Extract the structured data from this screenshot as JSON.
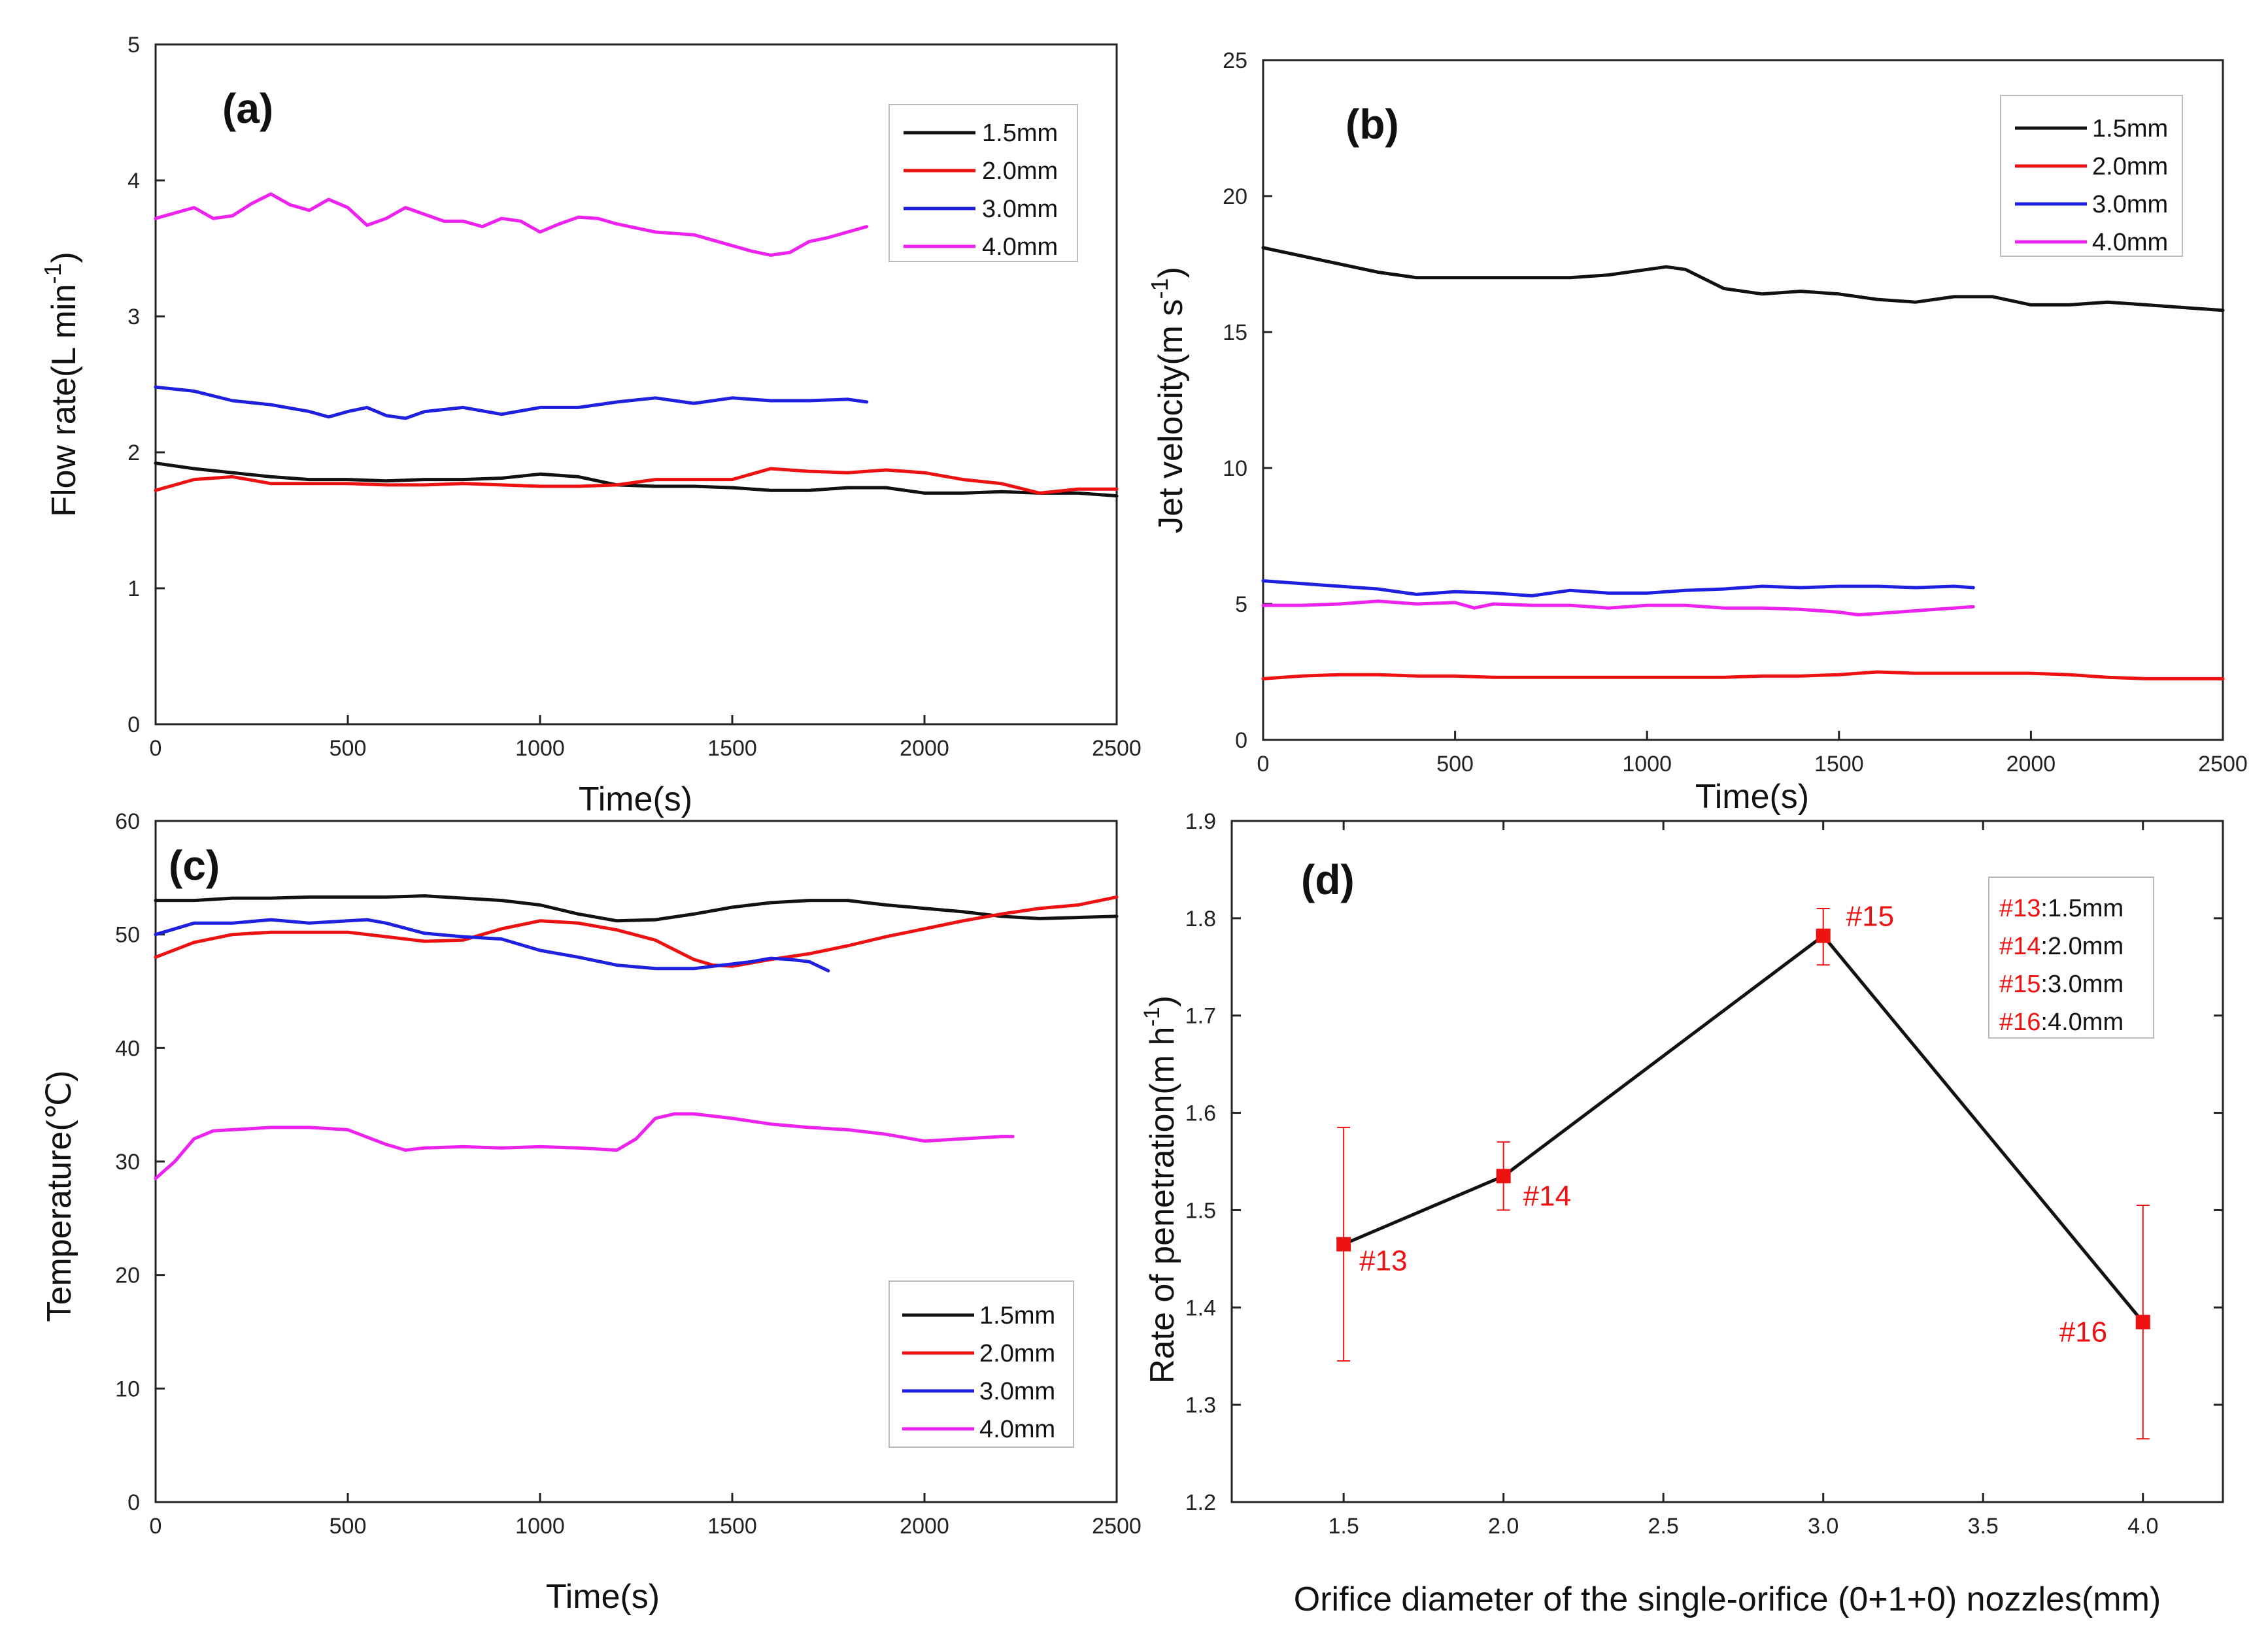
{
  "colors": {
    "s15": "#111111",
    "s20": "#ee1111",
    "s30": "#1f1fe0",
    "s40": "#ee22ee",
    "axis": "#222222"
  },
  "chart_data": [
    {
      "id": "a",
      "type": "line",
      "panel_label": "(a)",
      "xlabel": "Time(s)",
      "ylabel": "Flow rate(L min",
      "ylabel_sup": "-1",
      "ylabel_close": ")",
      "xlim": [
        0,
        2500
      ],
      "ylim": [
        0,
        5
      ],
      "xticks": [
        0,
        500,
        1000,
        1500,
        2000,
        2500
      ],
      "yticks": [
        0,
        1,
        2,
        3,
        4,
        5
      ],
      "legend_position": "top-right",
      "series": [
        {
          "name": "1.5mm",
          "color": "#111111",
          "x": [
            0,
            100,
            200,
            300,
            400,
            500,
            600,
            700,
            800,
            900,
            1000,
            1100,
            1200,
            1300,
            1400,
            1500,
            1600,
            1700,
            1800,
            1900,
            2000,
            2100,
            2200,
            2300,
            2400,
            2500
          ],
          "y": [
            1.92,
            1.88,
            1.85,
            1.82,
            1.8,
            1.8,
            1.79,
            1.8,
            1.8,
            1.81,
            1.84,
            1.82,
            1.76,
            1.75,
            1.75,
            1.74,
            1.72,
            1.72,
            1.74,
            1.74,
            1.7,
            1.7,
            1.71,
            1.7,
            1.7,
            1.68
          ]
        },
        {
          "name": "2.0mm",
          "color": "#ee1111",
          "x": [
            0,
            100,
            200,
            300,
            400,
            500,
            600,
            700,
            800,
            900,
            1000,
            1100,
            1200,
            1300,
            1400,
            1500,
            1600,
            1700,
            1800,
            1900,
            2000,
            2100,
            2200,
            2300,
            2400,
            2500
          ],
          "y": [
            1.72,
            1.8,
            1.82,
            1.77,
            1.77,
            1.77,
            1.76,
            1.76,
            1.77,
            1.76,
            1.75,
            1.75,
            1.76,
            1.8,
            1.8,
            1.8,
            1.88,
            1.86,
            1.85,
            1.87,
            1.85,
            1.8,
            1.77,
            1.7,
            1.73,
            1.73
          ]
        },
        {
          "name": "3.0mm",
          "color": "#1f1fe0",
          "x": [
            0,
            100,
            200,
            300,
            400,
            450,
            500,
            550,
            600,
            650,
            700,
            800,
            900,
            1000,
            1100,
            1200,
            1300,
            1400,
            1500,
            1600,
            1700,
            1800,
            1850
          ],
          "y": [
            2.48,
            2.45,
            2.38,
            2.35,
            2.3,
            2.26,
            2.3,
            2.33,
            2.27,
            2.25,
            2.3,
            2.33,
            2.28,
            2.33,
            2.33,
            2.37,
            2.4,
            2.36,
            2.4,
            2.38,
            2.38,
            2.39,
            2.37
          ]
        },
        {
          "name": "4.0mm",
          "color": "#ee22ee",
          "x": [
            0,
            50,
            100,
            150,
            200,
            250,
            300,
            350,
            400,
            450,
            500,
            550,
            600,
            650,
            700,
            750,
            800,
            850,
            900,
            950,
            1000,
            1050,
            1100,
            1150,
            1200,
            1300,
            1400,
            1500,
            1550,
            1600,
            1650,
            1700,
            1750,
            1800,
            1850
          ],
          "y": [
            3.72,
            3.76,
            3.8,
            3.72,
            3.74,
            3.83,
            3.9,
            3.82,
            3.78,
            3.86,
            3.8,
            3.67,
            3.72,
            3.8,
            3.75,
            3.7,
            3.7,
            3.66,
            3.72,
            3.7,
            3.62,
            3.68,
            3.73,
            3.72,
            3.68,
            3.62,
            3.6,
            3.52,
            3.48,
            3.45,
            3.47,
            3.55,
            3.58,
            3.62,
            3.66
          ]
        }
      ]
    },
    {
      "id": "b",
      "type": "line",
      "panel_label": "(b)",
      "xlabel": "Time(s)",
      "ylabel": "Jet velocity(m s",
      "ylabel_sup": "-1",
      "ylabel_close": ")",
      "xlim": [
        0,
        2500
      ],
      "ylim": [
        0,
        25
      ],
      "xticks": [
        0,
        500,
        1000,
        1500,
        2000,
        2500
      ],
      "yticks": [
        0,
        5,
        10,
        15,
        20,
        25
      ],
      "legend_position": "top-right",
      "series": [
        {
          "name": "1.5mm",
          "color": "#111111",
          "x": [
            0,
            100,
            200,
            300,
            400,
            500,
            600,
            700,
            800,
            900,
            1000,
            1050,
            1100,
            1200,
            1300,
            1400,
            1500,
            1600,
            1700,
            1800,
            1900,
            2000,
            2100,
            2200,
            2300,
            2400,
            2500
          ],
          "y": [
            18.1,
            17.8,
            17.5,
            17.2,
            17.0,
            17.0,
            17.0,
            17.0,
            17.0,
            17.1,
            17.3,
            17.4,
            17.3,
            16.6,
            16.4,
            16.5,
            16.4,
            16.2,
            16.1,
            16.3,
            16.3,
            16.0,
            16.0,
            16.1,
            16.0,
            15.9,
            15.8
          ]
        },
        {
          "name": "2.0mm",
          "color": "#ee1111",
          "x": [
            0,
            100,
            200,
            300,
            400,
            500,
            600,
            700,
            800,
            900,
            1000,
            1100,
            1200,
            1300,
            1400,
            1500,
            1600,
            1700,
            1800,
            1900,
            2000,
            2100,
            2200,
            2300,
            2400,
            2500
          ],
          "y": [
            2.25,
            2.35,
            2.4,
            2.4,
            2.35,
            2.35,
            2.3,
            2.3,
            2.3,
            2.3,
            2.3,
            2.3,
            2.3,
            2.35,
            2.35,
            2.4,
            2.5,
            2.45,
            2.45,
            2.45,
            2.45,
            2.4,
            2.3,
            2.25,
            2.25,
            2.25
          ]
        },
        {
          "name": "3.0mm",
          "color": "#1f1fe0",
          "x": [
            0,
            100,
            200,
            300,
            400,
            500,
            600,
            700,
            800,
            900,
            1000,
            1100,
            1200,
            1300,
            1400,
            1500,
            1600,
            1700,
            1800,
            1850
          ],
          "y": [
            5.85,
            5.75,
            5.65,
            5.55,
            5.35,
            5.45,
            5.4,
            5.3,
            5.5,
            5.4,
            5.4,
            5.5,
            5.55,
            5.65,
            5.6,
            5.65,
            5.65,
            5.6,
            5.65,
            5.6
          ]
        },
        {
          "name": "4.0mm",
          "color": "#ee22ee",
          "x": [
            0,
            100,
            200,
            300,
            400,
            500,
            550,
            600,
            700,
            800,
            900,
            1000,
            1100,
            1200,
            1300,
            1400,
            1500,
            1550,
            1600,
            1700,
            1800,
            1850
          ],
          "y": [
            4.95,
            4.95,
            5.0,
            5.1,
            5.0,
            5.05,
            4.85,
            5.0,
            4.95,
            4.95,
            4.85,
            4.95,
            4.95,
            4.85,
            4.85,
            4.8,
            4.7,
            4.6,
            4.65,
            4.75,
            4.85,
            4.9
          ]
        }
      ]
    },
    {
      "id": "c",
      "type": "line",
      "panel_label": "(c)",
      "xlabel": "Time(s)",
      "ylabel": "Temperature(℃)",
      "xlim": [
        0,
        2500
      ],
      "ylim": [
        0,
        60
      ],
      "xticks": [
        0,
        500,
        1000,
        1500,
        2000,
        2500
      ],
      "yticks": [
        0,
        10,
        20,
        30,
        40,
        50,
        60
      ],
      "legend_position": "bottom-right",
      "series": [
        {
          "name": "1.5mm",
          "color": "#111111",
          "x": [
            0,
            100,
            200,
            300,
            400,
            500,
            600,
            700,
            800,
            900,
            1000,
            1100,
            1200,
            1300,
            1400,
            1500,
            1600,
            1700,
            1800,
            1900,
            2000,
            2100,
            2200,
            2300,
            2400,
            2500
          ],
          "y": [
            53.0,
            53.0,
            53.2,
            53.2,
            53.3,
            53.3,
            53.3,
            53.4,
            53.2,
            53.0,
            52.6,
            51.8,
            51.2,
            51.3,
            51.8,
            52.4,
            52.8,
            53.0,
            53.0,
            52.6,
            52.3,
            52.0,
            51.6,
            51.4,
            51.5,
            51.6
          ]
        },
        {
          "name": "2.0mm",
          "color": "#ee1111",
          "x": [
            0,
            100,
            200,
            300,
            400,
            500,
            600,
            700,
            800,
            900,
            1000,
            1100,
            1200,
            1300,
            1400,
            1450,
            1500,
            1600,
            1700,
            1800,
            1900,
            2000,
            2100,
            2200,
            2300,
            2400,
            2500
          ],
          "y": [
            48.0,
            49.3,
            50.0,
            50.2,
            50.2,
            50.2,
            49.8,
            49.4,
            49.5,
            50.5,
            51.2,
            51.0,
            50.4,
            49.5,
            47.8,
            47.3,
            47.2,
            47.8,
            48.3,
            49.0,
            49.8,
            50.5,
            51.2,
            51.8,
            52.3,
            52.6,
            53.3
          ]
        },
        {
          "name": "3.0mm",
          "color": "#1f1fe0",
          "x": [
            0,
            100,
            200,
            300,
            400,
            500,
            550,
            600,
            700,
            800,
            900,
            1000,
            1100,
            1200,
            1300,
            1400,
            1500,
            1550,
            1600,
            1650,
            1700,
            1750
          ],
          "y": [
            50.0,
            51.0,
            51.0,
            51.3,
            51.0,
            51.2,
            51.3,
            51.0,
            50.1,
            49.8,
            49.6,
            48.6,
            48.0,
            47.3,
            47.0,
            47.0,
            47.4,
            47.6,
            47.9,
            47.8,
            47.6,
            46.8
          ]
        },
        {
          "name": "4.0mm",
          "color": "#ee22ee",
          "x": [
            0,
            50,
            100,
            150,
            200,
            300,
            400,
            500,
            600,
            650,
            700,
            800,
            900,
            1000,
            1100,
            1200,
            1250,
            1300,
            1350,
            1400,
            1500,
            1600,
            1700,
            1800,
            1900,
            2000,
            2100,
            2200,
            2230
          ],
          "y": [
            28.5,
            30.0,
            32.0,
            32.7,
            32.8,
            33.0,
            33.0,
            32.8,
            31.5,
            31.0,
            31.2,
            31.3,
            31.2,
            31.3,
            31.2,
            31.0,
            32.0,
            33.8,
            34.2,
            34.2,
            33.8,
            33.3,
            33.0,
            32.8,
            32.4,
            31.8,
            32.0,
            32.2,
            32.2
          ]
        }
      ]
    },
    {
      "id": "d",
      "type": "line",
      "panel_label": "(d)",
      "xlabel": "Orifice diameter of the single-orifice (0+1+0) nozzles(mm)",
      "ylabel": "Rate of penetration(m h",
      "ylabel_sup": "-1",
      "ylabel_close": ")",
      "xlim": [
        1.15,
        4.25
      ],
      "ylim": [
        1.2,
        1.9
      ],
      "xticks": [
        1.5,
        2.0,
        2.5,
        3.0,
        3.5,
        4.0
      ],
      "xtick_labels": [
        "1.5",
        "2.0",
        "2.5",
        "3.0",
        "3.5",
        "4.0"
      ],
      "yticks": [
        1.2,
        1.3,
        1.4,
        1.5,
        1.6,
        1.7,
        1.8,
        1.9
      ],
      "ytick_labels": [
        "1.2",
        "1.3",
        "1.4",
        "1.5",
        "1.6",
        "1.7",
        "1.8",
        "1.9"
      ],
      "legend_position": "top-right",
      "points": [
        {
          "label": "#13",
          "x": 1.5,
          "y": 1.465,
          "err_low": 1.345,
          "err_high": 1.585
        },
        {
          "label": "#14",
          "x": 2.0,
          "y": 1.535,
          "err_low": 1.5,
          "err_high": 1.57
        },
        {
          "label": "#15",
          "x": 3.0,
          "y": 1.782,
          "err_low": 1.752,
          "err_high": 1.81
        },
        {
          "label": "#16",
          "x": 4.0,
          "y": 1.385,
          "err_low": 1.265,
          "err_high": 1.505
        }
      ],
      "legend": [
        {
          "tag": "#13",
          "text": ":1.5mm"
        },
        {
          "tag": "#14",
          "text": ":2.0mm"
        },
        {
          "tag": "#15",
          "text": ":3.0mm"
        },
        {
          "tag": "#16",
          "text": ":4.0mm"
        }
      ]
    }
  ]
}
